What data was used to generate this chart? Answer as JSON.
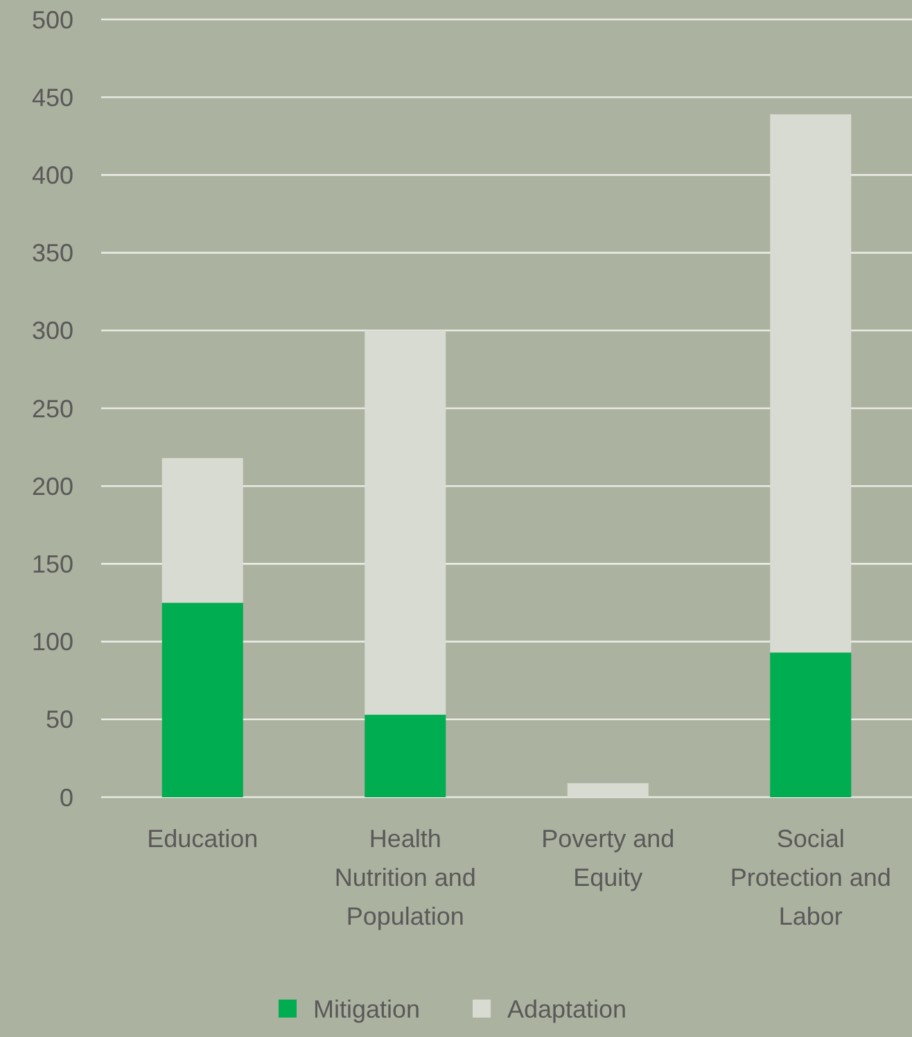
{
  "chart_data": {
    "type": "bar",
    "stacked": true,
    "categories": [
      "Education",
      "Health Nutrition and Population",
      "Poverty and Equity",
      "Social Protection and Labor"
    ],
    "series": [
      {
        "name": "Mitigation",
        "color": "#00ad50",
        "values": [
          125,
          53,
          0,
          93
        ]
      },
      {
        "name": "Adaptation",
        "color": "#d8dbd2",
        "values": [
          93,
          247,
          9,
          346
        ]
      }
    ],
    "ylim": [
      0,
      500
    ],
    "yticks": [
      0,
      50,
      100,
      150,
      200,
      250,
      300,
      350,
      400,
      450,
      500
    ],
    "grid": "y",
    "legend": "bottom"
  }
}
